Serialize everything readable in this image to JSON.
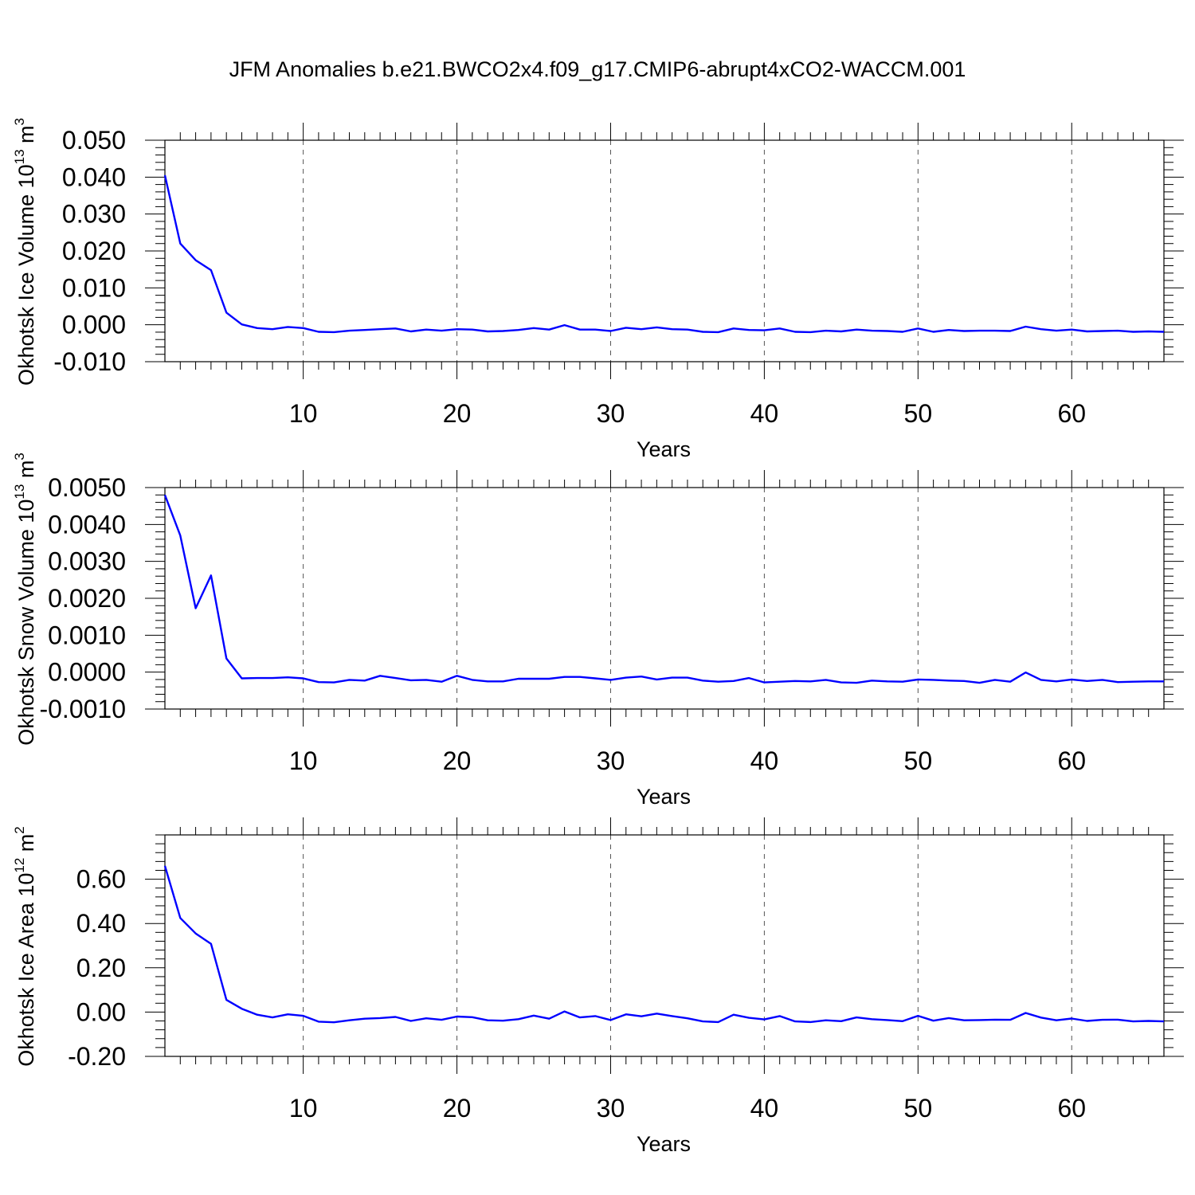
{
  "title": "JFM Anomalies b.e21.BWCO2x4.f09_g17.CMIP6-abrupt4xCO2-WACCM.001",
  "colors": {
    "line": "#0000ff",
    "axis": "#000000",
    "grid": "#555555",
    "background": "#ffffff"
  },
  "chart_data": [
    {
      "type": "line",
      "ylabel": "Okhotsk Ice Volume 10",
      "ylabel_exp": "13",
      "ylabel_unit": "m",
      "ylabel_unit_exp": "3",
      "xlabel": "Years",
      "xlim": [
        1,
        66
      ],
      "ylim": [
        -0.01,
        0.05
      ],
      "xticks": [
        10,
        20,
        30,
        40,
        50,
        60
      ],
      "xtick_labels": [
        "10",
        "20",
        "30",
        "40",
        "50",
        "60"
      ],
      "yticks": [
        -0.01,
        0.0,
        0.01,
        0.02,
        0.03,
        0.04,
        0.05
      ],
      "ytick_labels": [
        "-0.010",
        "0.000",
        "0.010",
        "0.020",
        "0.030",
        "0.040",
        "0.050"
      ],
      "grid": "vertical dashed at major x ticks",
      "series": [
        {
          "values": [
            0.0405,
            0.022,
            0.0175,
            0.0148,
            0.0033,
            0.0001,
            -0.0009,
            -0.0012,
            -0.0006,
            -0.0009,
            -0.0019,
            -0.002,
            -0.0016,
            -0.0014,
            -0.0012,
            -0.001,
            -0.0018,
            -0.0013,
            -0.0016,
            -0.0012,
            -0.0013,
            -0.0018,
            -0.0017,
            -0.0014,
            -0.0009,
            -0.0013,
            -0.0001,
            -0.0013,
            -0.0013,
            -0.0017,
            -0.0008,
            -0.0012,
            -0.0007,
            -0.0012,
            -0.0013,
            -0.0019,
            -0.002,
            -0.001,
            -0.0014,
            -0.0015,
            -0.001,
            -0.0019,
            -0.002,
            -0.0016,
            -0.0018,
            -0.0013,
            -0.0016,
            -0.0017,
            -0.0019,
            -0.001,
            -0.0019,
            -0.0014,
            -0.0017,
            -0.0016,
            -0.0016,
            -0.0017,
            -0.0005,
            -0.0012,
            -0.0016,
            -0.0013,
            -0.0018,
            -0.0017,
            -0.0016,
            -0.0019,
            -0.0018,
            -0.0019
          ]
        }
      ]
    },
    {
      "type": "line",
      "ylabel": "Okhotsk Snow Volume 10",
      "ylabel_exp": "13",
      "ylabel_unit": "m",
      "ylabel_unit_exp": "3",
      "xlabel": "Years",
      "xlim": [
        1,
        66
      ],
      "ylim": [
        -0.001,
        0.005
      ],
      "xticks": [
        10,
        20,
        30,
        40,
        50,
        60
      ],
      "xtick_labels": [
        "10",
        "20",
        "30",
        "40",
        "50",
        "60"
      ],
      "yticks": [
        -0.001,
        0.0,
        0.001,
        0.002,
        0.003,
        0.004,
        0.005
      ],
      "ytick_labels": [
        "-0.0010",
        "0.0000",
        "0.0010",
        "0.0020",
        "0.0030",
        "0.0040",
        "0.0050"
      ],
      "grid": "vertical dashed at major x ticks",
      "series": [
        {
          "values": [
            0.0048,
            0.0037,
            0.00173,
            0.00262,
            0.00037,
            -0.00017,
            -0.00016,
            -0.00016,
            -0.00014,
            -0.00017,
            -0.00027,
            -0.00028,
            -0.00021,
            -0.00023,
            -0.0001,
            -0.00016,
            -0.00022,
            -0.00021,
            -0.00026,
            -0.0001,
            -0.00021,
            -0.00025,
            -0.00025,
            -0.00018,
            -0.00018,
            -0.00018,
            -0.00013,
            -0.00013,
            -0.00017,
            -0.00021,
            -0.00015,
            -0.00012,
            -0.0002,
            -0.00015,
            -0.00015,
            -0.00023,
            -0.00026,
            -0.00024,
            -0.00016,
            -0.00028,
            -0.00026,
            -0.00024,
            -0.00025,
            -0.00021,
            -0.00028,
            -0.00029,
            -0.00023,
            -0.00025,
            -0.00026,
            -0.0002,
            -0.00021,
            -0.00023,
            -0.00024,
            -0.00029,
            -0.00021,
            -0.00026,
            -1e-05,
            -0.00021,
            -0.00025,
            -0.0002,
            -0.00024,
            -0.00021,
            -0.00027,
            -0.00026,
            -0.00025,
            -0.00025
          ]
        }
      ]
    },
    {
      "type": "line",
      "ylabel": "Okhotsk Ice Area 10",
      "ylabel_exp": "12",
      "ylabel_unit": "m",
      "ylabel_unit_exp": "2",
      "xlabel": "Years",
      "xlim": [
        1,
        66
      ],
      "ylim": [
        -0.2,
        0.8
      ],
      "xticks": [
        10,
        20,
        30,
        40,
        50,
        60
      ],
      "xtick_labels": [
        "10",
        "20",
        "30",
        "40",
        "50",
        "60"
      ],
      "yticks": [
        -0.2,
        0.0,
        0.2,
        0.4,
        0.6
      ],
      "ytick_labels": [
        "-0.20",
        "0.00",
        "0.20",
        "0.40",
        "0.60"
      ],
      "grid": "vertical dashed at major x ticks",
      "series": [
        {
          "values": [
            0.66,
            0.425,
            0.355,
            0.308,
            0.055,
            0.015,
            -0.012,
            -0.024,
            -0.01,
            -0.017,
            -0.043,
            -0.046,
            -0.037,
            -0.03,
            -0.027,
            -0.022,
            -0.04,
            -0.028,
            -0.035,
            -0.02,
            -0.023,
            -0.037,
            -0.039,
            -0.032,
            -0.016,
            -0.03,
            0.003,
            -0.024,
            -0.018,
            -0.036,
            -0.01,
            -0.019,
            -0.007,
            -0.018,
            -0.028,
            -0.042,
            -0.045,
            -0.012,
            -0.026,
            -0.033,
            -0.018,
            -0.042,
            -0.045,
            -0.037,
            -0.041,
            -0.024,
            -0.032,
            -0.036,
            -0.041,
            -0.017,
            -0.039,
            -0.027,
            -0.037,
            -0.036,
            -0.034,
            -0.035,
            -0.004,
            -0.025,
            -0.037,
            -0.029,
            -0.04,
            -0.035,
            -0.034,
            -0.042,
            -0.04,
            -0.042
          ]
        }
      ]
    }
  ]
}
